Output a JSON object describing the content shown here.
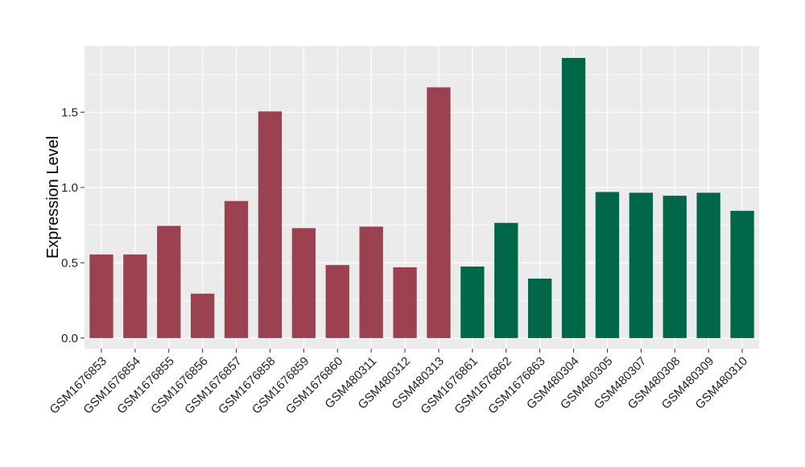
{
  "chart_data": {
    "type": "bar",
    "title": "",
    "xlabel": "",
    "ylabel": "Expression Level",
    "ylim": [
      -0.07,
      1.94
    ],
    "yticks": [
      0.0,
      0.5,
      1.0,
      1.5
    ],
    "ytick_labels": [
      "0.0",
      "0.5",
      "1.0",
      "1.5"
    ],
    "grid": true,
    "legend": "none",
    "categories": [
      "GSM1676853",
      "GSM1676854",
      "GSM1676855",
      "GSM1676856",
      "GSM1676857",
      "GSM1676858",
      "GSM1676859",
      "GSM1676860",
      "GSM480311",
      "GSM480312",
      "GSM480313",
      "GSM1676861",
      "GSM1676862",
      "GSM1676863",
      "GSM480304",
      "GSM480305",
      "GSM480307",
      "GSM480308",
      "GSM480309",
      "GSM480310"
    ],
    "values": [
      0.555,
      0.555,
      0.745,
      0.295,
      0.91,
      1.505,
      0.73,
      0.485,
      0.74,
      0.47,
      1.665,
      0.475,
      0.765,
      0.395,
      1.86,
      0.97,
      0.965,
      0.945,
      0.965,
      0.845
    ],
    "groups": [
      "red",
      "red",
      "red",
      "red",
      "red",
      "red",
      "red",
      "red",
      "red",
      "red",
      "red",
      "green",
      "green",
      "green",
      "green",
      "green",
      "green",
      "green",
      "green",
      "green"
    ],
    "colors": {
      "red": "#9B4150",
      "green": "#006848"
    },
    "panel_background": "#EBEBEB",
    "grid_color": "#FFFFFF"
  }
}
